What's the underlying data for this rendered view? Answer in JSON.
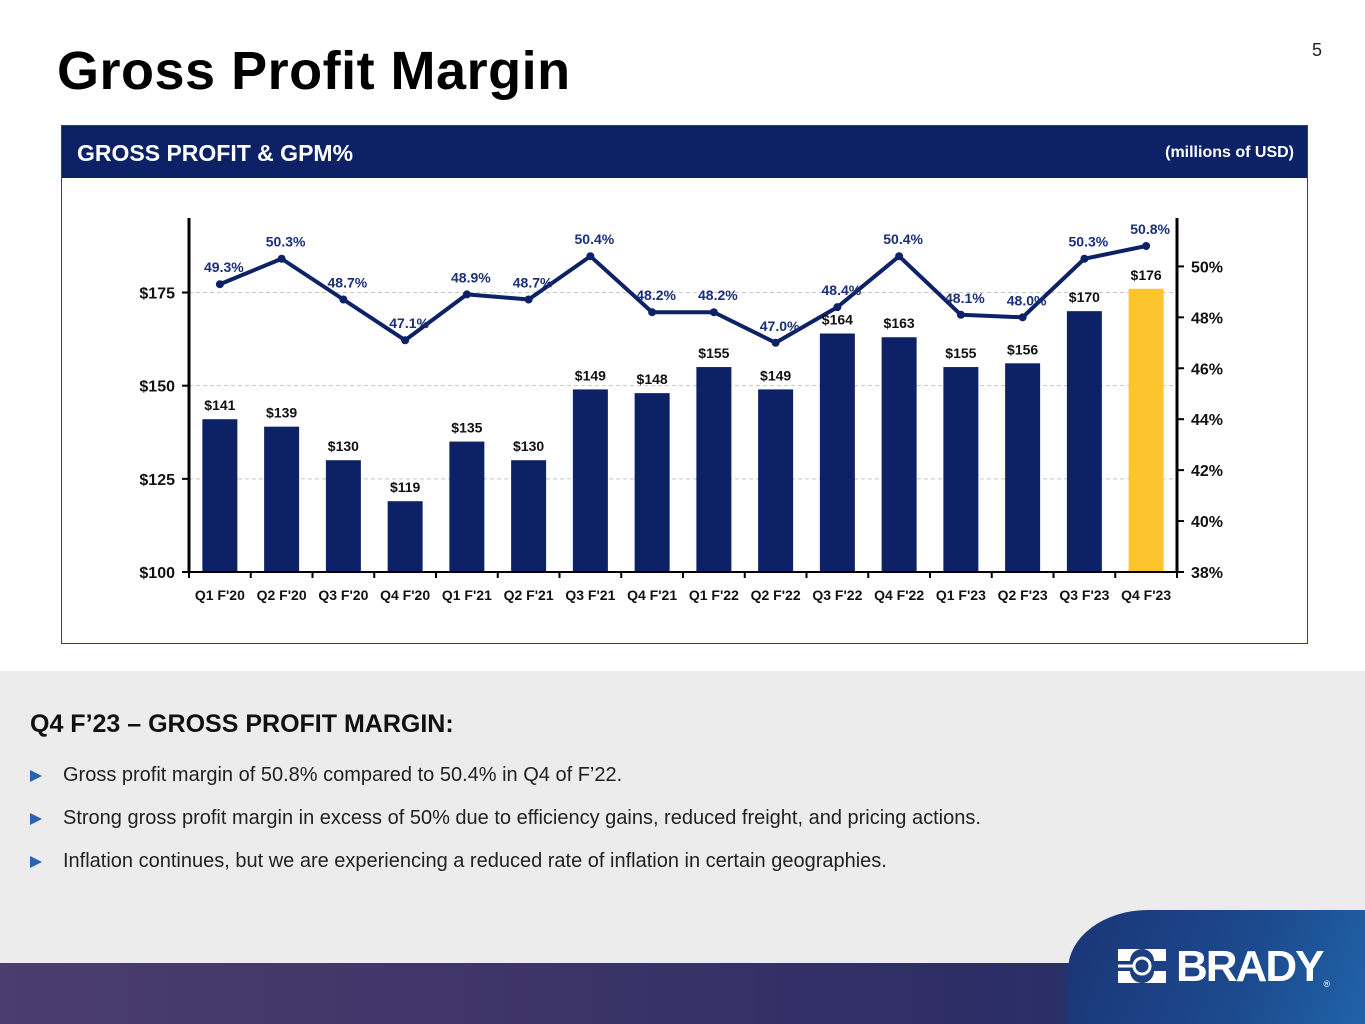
{
  "page": {
    "title": "Gross Profit Margin",
    "page_number": "5"
  },
  "panel": {
    "title": "GROSS PROFIT & GPM%",
    "units": "(millions of USD)"
  },
  "chart_data": {
    "type": "bar",
    "title": "GROSS PROFIT & GPM%",
    "subtitle": "(millions of USD)",
    "xlabel": "",
    "ylabel": "",
    "y2label": "",
    "categories": [
      "Q1 F'20",
      "Q2 F'20",
      "Q3 F'20",
      "Q4 F'20",
      "Q1 F'21",
      "Q2 F'21",
      "Q3 F'21",
      "Q4 F'21",
      "Q1 F'22",
      "Q2 F'22",
      "Q3 F'22",
      "Q4 F'22",
      "Q1 F'23",
      "Q2 F'23",
      "Q3 F'23",
      "Q4 F'23"
    ],
    "series": [
      {
        "name": "Gross Profit",
        "type": "bar",
        "axis": "left",
        "values": [
          141,
          139,
          130,
          119,
          135,
          130,
          149,
          148,
          155,
          149,
          164,
          163,
          155,
          156,
          170,
          176
        ],
        "labels": [
          "$141",
          "$139",
          "$130",
          "$119",
          "$135",
          "$130",
          "$149",
          "$148",
          "$155",
          "$149",
          "$164",
          "$163",
          "$155",
          "$156",
          "$170",
          "$176"
        ],
        "color": "#0d2266",
        "highlight_color": "#fcc42d",
        "highlight_index": 15
      },
      {
        "name": "GPM%",
        "type": "line",
        "axis": "right",
        "values": [
          49.3,
          50.3,
          48.7,
          47.1,
          48.9,
          48.7,
          50.4,
          48.2,
          48.2,
          47.0,
          48.4,
          50.4,
          48.1,
          48.0,
          50.3,
          50.8
        ],
        "labels": [
          "49.3%",
          "50.3%",
          "48.7%",
          "47.1%",
          "48.9%",
          "48.7%",
          "50.4%",
          "48.2%",
          "48.2%",
          "47.0%",
          "48.4%",
          "50.4%",
          "48.1%",
          "48.0%",
          "50.3%",
          "50.8%"
        ],
        "color": "#0d2266"
      }
    ],
    "y_left": {
      "ylim": [
        100,
        195
      ],
      "ticks": [
        100,
        125,
        150,
        175
      ],
      "tick_labels": [
        "$100",
        "$125",
        "$150",
        "$175"
      ]
    },
    "y_right": {
      "ylim": [
        38,
        51.9
      ],
      "ticks": [
        38,
        40,
        42,
        44,
        46,
        48,
        50
      ],
      "tick_labels": [
        "38%",
        "40%",
        "42%",
        "44%",
        "46%",
        "48%",
        "50%"
      ]
    },
    "grid": "horizontal dashed at left-axis ticks",
    "legend": "none"
  },
  "commentary": {
    "heading": "Q4 F’23 – GROSS PROFIT MARGIN:",
    "bullets": [
      "Gross profit margin of 50.8% compared to 50.4% in Q4 of F’22.",
      "Strong gross profit margin in excess of 50% due to efficiency gains, reduced freight, and pricing actions.",
      "Inflation continues, but we are experiencing a reduced rate of inflation in certain geographies."
    ],
    "bullet_icon": "triangle-right-icon"
  },
  "brand": {
    "logo_text": "BRADY",
    "registered_mark": "®",
    "logo_icon": "brady-logo-mark-icon"
  }
}
